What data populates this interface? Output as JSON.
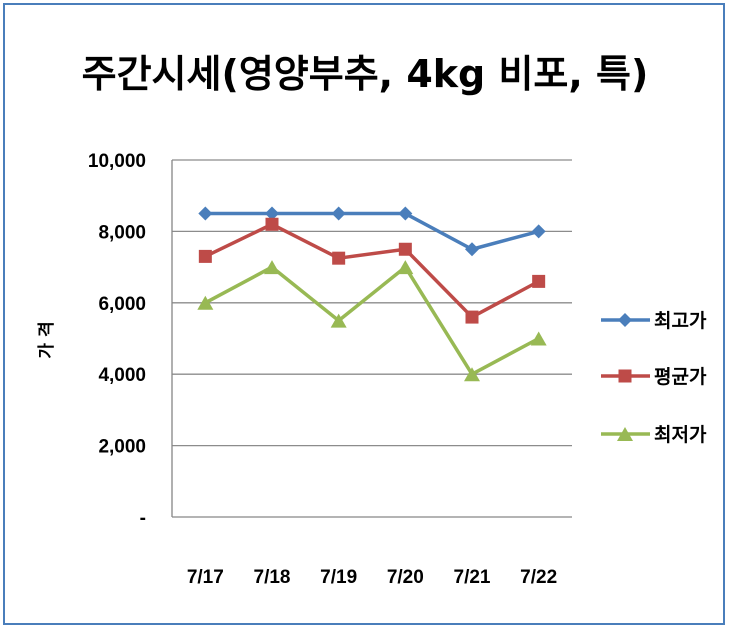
{
  "chart_data": {
    "type": "line",
    "title": "주간시세(영양부추, 4kg 비포, 특)",
    "ylabel": "가 격",
    "xlabel": "",
    "categories": [
      "7/17",
      "7/18",
      "7/19",
      "7/20",
      "7/21",
      "7/22"
    ],
    "ylim": [
      0,
      10000
    ],
    "yticks": [
      "-",
      "2,000",
      "4,000",
      "6,000",
      "8,000",
      "10,000"
    ],
    "grid": true,
    "legend_position": "right",
    "series": [
      {
        "name": "최고가",
        "color": "#4a7ebb",
        "marker": "diamond",
        "values": [
          8500,
          8500,
          8500,
          8500,
          7500,
          8000
        ]
      },
      {
        "name": "평균가",
        "color": "#be4b48",
        "marker": "square",
        "values": [
          7300,
          8200,
          7250,
          7500,
          5600,
          6600
        ]
      },
      {
        "name": "최저가",
        "color": "#98b954",
        "marker": "triangle",
        "values": [
          6000,
          7000,
          5500,
          7000,
          4000,
          5000
        ]
      }
    ]
  }
}
